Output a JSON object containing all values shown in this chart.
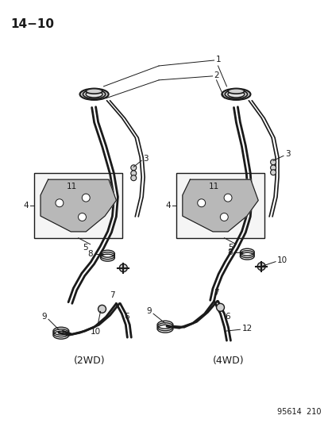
{
  "title": "14−10",
  "bg_color": "#ffffff",
  "line_color": "#1a1a1a",
  "part_number": "95614  210",
  "figsize": [
    4.14,
    5.33
  ],
  "dpi": 100,
  "label_2wd": [
    0.27,
    0.855
  ],
  "label_4wd": [
    0.695,
    0.855
  ]
}
